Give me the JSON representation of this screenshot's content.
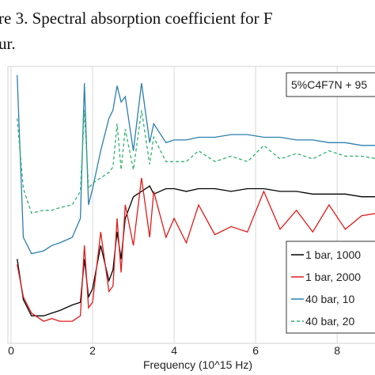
{
  "chart_data": {
    "type": "line",
    "caption": [
      "re 3. Spectral absorption coefficient for F",
      "ur."
    ],
    "annotation": "5%C4F7N + 95",
    "xlabel": "Frequency (10^15 Hz)",
    "xlim": [
      0,
      9.2
    ],
    "xticks": [
      0,
      2,
      4,
      6,
      8
    ],
    "ylim": [
      0,
      100
    ],
    "grid": true,
    "legend": "lower right",
    "x": [
      0.15,
      0.3,
      0.5,
      0.8,
      1.0,
      1.2,
      1.5,
      1.7,
      1.8,
      1.9,
      2.0,
      2.2,
      2.4,
      2.5,
      2.6,
      2.7,
      2.8,
      3.0,
      3.2,
      3.4,
      3.5,
      3.8,
      4.0,
      4.3,
      4.6,
      5.0,
      5.4,
      5.8,
      6.2,
      6.6,
      7.0,
      7.4,
      7.8,
      8.2,
      8.6,
      9.0
    ],
    "series": [
      {
        "name": "1 bar, 1000",
        "color": "#000000",
        "dashed": false,
        "values": [
          30,
          15,
          9,
          9,
          10,
          11,
          13,
          14,
          30,
          16,
          19,
          35,
          22,
          26,
          40,
          30,
          45,
          53,
          55,
          57,
          54,
          56,
          56,
          55,
          56,
          56,
          55,
          56,
          56,
          55,
          55,
          54,
          54,
          54,
          53,
          53
        ]
      },
      {
        "name": "1 bar, 2000",
        "color": "#e01b1b",
        "dashed": false,
        "values": [
          28,
          16,
          10,
          7,
          8,
          7,
          7,
          9,
          35,
          12,
          14,
          40,
          18,
          20,
          45,
          25,
          50,
          35,
          60,
          38,
          55,
          38,
          45,
          36,
          50,
          39,
          42,
          40,
          55,
          41,
          48,
          40,
          50,
          41,
          46,
          47
        ]
      },
      {
        "name": "40 bar, 10",
        "color": "#2a7fb0",
        "dashed": false,
        "values": [
          98,
          38,
          32,
          33,
          35,
          36,
          38,
          45,
          95,
          50,
          56,
          70,
          82,
          85,
          94,
          88,
          90,
          70,
          95,
          73,
          80,
          73,
          74,
          74,
          75,
          75,
          76,
          76,
          75,
          75,
          74,
          74,
          73,
          73,
          72,
          72
        ]
      },
      {
        "name": "40 bar, 20",
        "color": "#2db36b",
        "dashed": true,
        "values": [
          82,
          56,
          47,
          48,
          48,
          49,
          50,
          55,
          85,
          56,
          58,
          60,
          62,
          64,
          80,
          63,
          78,
          63,
          85,
          65,
          75,
          66,
          66,
          66,
          70,
          66,
          68,
          66,
          72,
          67,
          69,
          67,
          70,
          68,
          68,
          67
        ]
      }
    ]
  }
}
